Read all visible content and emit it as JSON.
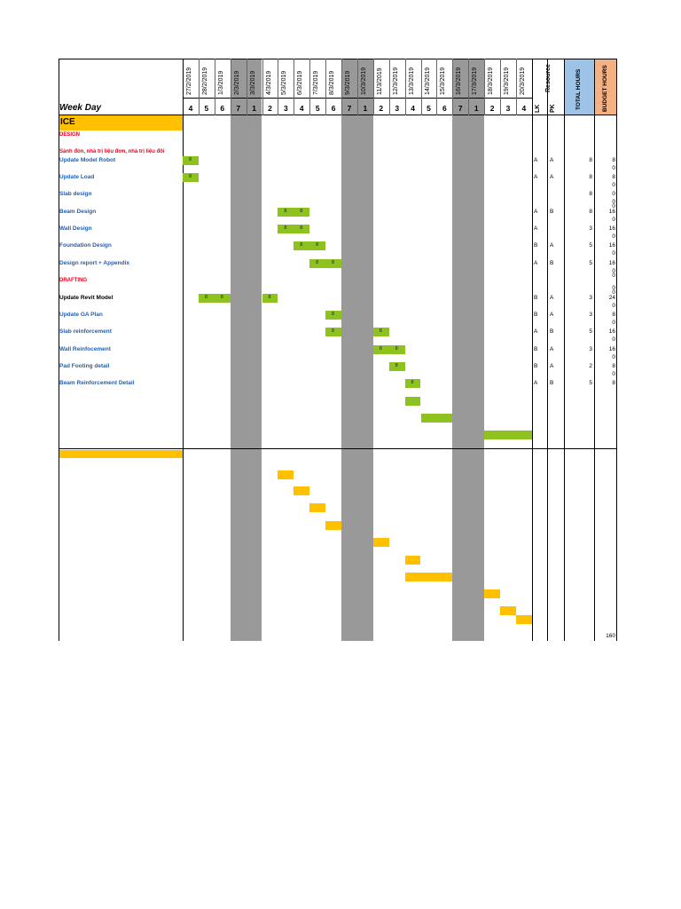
{
  "header": {
    "week_day_label": "Week Day",
    "section_title": "ICE",
    "resource_label": "Resource",
    "total_hours_label": "TOTAL HOURS",
    "budget_hours_label": "BUDGET HOURS",
    "resource_col1": "LK",
    "resource_col2": "PK"
  },
  "dates": [
    "27/2/2019",
    "28/2/2019",
    "1/3/2019",
    "2/3/2019",
    "3/3/2019",
    "4/3/2019",
    "5/3/2019",
    "6/3/2019",
    "7/3/2019",
    "8/3/2019",
    "9/3/2019",
    "10/3/2019",
    "11/3/2019",
    "12/3/2019",
    "13/3/2019",
    "14/3/2019",
    "15/3/2019",
    "16/3/2019",
    "17/3/2019",
    "18/3/2019",
    "19/3/2019",
    "20/3/2019"
  ],
  "weekdays": [
    "4",
    "5",
    "6",
    "7",
    "1",
    "2",
    "3",
    "4",
    "5",
    "6",
    "7",
    "1",
    "2",
    "3",
    "4",
    "5",
    "6",
    "7",
    "1",
    "2",
    "3",
    "4"
  ],
  "weekend_columns": [
    3,
    4,
    10,
    11,
    17,
    18
  ],
  "colors": {
    "green": "#8dc21f",
    "yellow": "#ffc000",
    "weekend": "#999999",
    "section_red": "#e8001c",
    "task_blue": "#1f5fb5",
    "total_header": "#9dc3e6",
    "budget_header": "#f4b183",
    "ice_yellow": "#ffc000"
  },
  "sections": [
    {
      "label": "DESIGN",
      "color": "red"
    },
    {
      "label": "DRAFTING",
      "color": "red"
    }
  ],
  "note": "Sảnh đón, nhà trị liệu đơn, nhà trị liệu đôi",
  "tasks": [
    {
      "label": "Update Model Robot",
      "color": "blue",
      "lk": "A",
      "pk": "A",
      "total": "8",
      "budget": "8"
    },
    {
      "label": "Update Load",
      "color": "blue",
      "lk": "A",
      "pk": "A",
      "total": "8",
      "budget": "8"
    },
    {
      "label": "Slab design",
      "color": "blue",
      "lk": "",
      "pk": "",
      "total": "8",
      "budget": "0"
    },
    {
      "label": "Beam Design",
      "color": "blue",
      "lk": "A",
      "pk": "B",
      "total": "8",
      "budget": "16"
    },
    {
      "label": "Wall Design",
      "color": "blue",
      "lk": "A",
      "pk": "",
      "total": "3",
      "budget": "16"
    },
    {
      "label": "Foundation Design",
      "color": "blue",
      "lk": "B",
      "pk": "A",
      "total": "5",
      "budget": "16"
    },
    {
      "label": "Design report + Appendix",
      "color": "blue",
      "lk": "A",
      "pk": "B",
      "total": "5",
      "budget": "16"
    },
    {
      "label": "Update Revit Model",
      "color": "black",
      "lk": "B",
      "pk": "A",
      "total": "3",
      "budget": "24"
    },
    {
      "label": "Update GA Plan",
      "color": "blue",
      "lk": "B",
      "pk": "A",
      "total": "3",
      "budget": "8"
    },
    {
      "label": "Slab reinforcement",
      "color": "blue",
      "lk": "A",
      "pk": "B",
      "total": "5",
      "budget": "16"
    },
    {
      "label": "Wall Reinfocement",
      "color": "blue",
      "lk": "B",
      "pk": "A",
      "total": "3",
      "budget": "16"
    },
    {
      "label": "Pad Footing detail",
      "color": "blue",
      "lk": "B",
      "pk": "A",
      "total": "2",
      "budget": "8"
    },
    {
      "label": "Beam Reinforcement Detail",
      "color": "blue",
      "lk": "A",
      "pk": "B",
      "total": "5",
      "budget": "8"
    }
  ],
  "zero_values": [
    "0",
    "0",
    "0",
    "0",
    "0",
    "0",
    "0",
    "0",
    "0",
    "0",
    "0",
    "0",
    "0",
    "0",
    "0",
    "0"
  ],
  "grand_total": "160",
  "green_bars": [
    {
      "row": 0,
      "start": 0,
      "span": 1,
      "labels": [
        "8"
      ]
    },
    {
      "row": 1,
      "start": 0,
      "span": 1,
      "labels": [
        "8"
      ]
    },
    {
      "row": 3,
      "start": 6,
      "span": 2,
      "labels": [
        "8",
        "8"
      ]
    },
    {
      "row": 4,
      "start": 6,
      "span": 2,
      "labels": [
        "8",
        "8"
      ]
    },
    {
      "row": 5,
      "start": 7,
      "span": 2,
      "labels": [
        "8",
        "8"
      ]
    },
    {
      "row": 6,
      "start": 8,
      "span": 2,
      "labels": [
        "8",
        "8"
      ]
    },
    {
      "row": 7,
      "start": 1,
      "span": 2,
      "labels": [
        "8",
        "8"
      ]
    },
    {
      "row": 7,
      "start": 5,
      "span": 1,
      "labels": [
        "8"
      ]
    },
    {
      "row": 8,
      "start": 9,
      "span": 1,
      "labels": [
        "8"
      ]
    },
    {
      "row": 9,
      "start": 9,
      "span": 1,
      "labels": [
        "8"
      ]
    },
    {
      "row": 9,
      "start": 12,
      "span": 1,
      "labels": [
        "8"
      ]
    },
    {
      "row": 10,
      "start": 12,
      "span": 2,
      "labels": [
        "8",
        "8"
      ]
    },
    {
      "row": 11,
      "start": 13,
      "span": 1,
      "labels": [
        "8"
      ]
    },
    {
      "row": 12,
      "start": 14,
      "span": 1,
      "labels": [
        "8"
      ]
    },
    {
      "row": 13,
      "start": 14,
      "span": 1,
      "labels": []
    },
    {
      "row": 14,
      "start": 15,
      "span": 2,
      "labels": []
    },
    {
      "row": 15,
      "start": 19,
      "span": 3,
      "labels": []
    }
  ],
  "yellow_bars": [
    {
      "row": 0,
      "start": 6,
      "span": 1
    },
    {
      "row": 1,
      "start": 7,
      "span": 1
    },
    {
      "row": 2,
      "start": 8,
      "span": 1
    },
    {
      "row": 3,
      "start": 9,
      "span": 1
    },
    {
      "row": 4,
      "start": 12,
      "span": 1
    },
    {
      "row": 5,
      "start": 14,
      "span": 1
    },
    {
      "row": 6,
      "start": 14,
      "span": 3
    },
    {
      "row": 7,
      "start": 19,
      "span": 1
    },
    {
      "row": 8,
      "start": 20,
      "span": 1
    },
    {
      "row": 9,
      "start": 21,
      "span": 1
    }
  ]
}
